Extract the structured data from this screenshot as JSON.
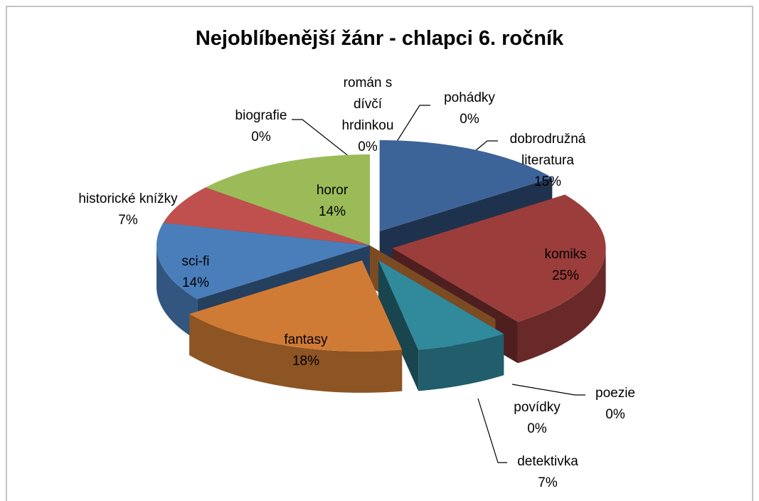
{
  "chart_data": {
    "type": "pie3d",
    "title": "Nejoblíbenější žánr - chlapci 6. ročník",
    "categories": [
      "pohádky",
      "dobrodružná literatura",
      "komiks",
      "poezie",
      "povídky",
      "detektivka",
      "fantasy",
      "sci-fi",
      "historické knížky",
      "horor",
      "biografie",
      "román s dívčí hrdinkou"
    ],
    "values": [
      0,
      15,
      25,
      0,
      0,
      7,
      18,
      14,
      7,
      14,
      0,
      0
    ],
    "value_labels": [
      "0%",
      "15%",
      "25%",
      "0%",
      "0%",
      "7%",
      "18%",
      "14%",
      "7%",
      "14%",
      "0%",
      "0%"
    ],
    "colors": [
      "#8064a2",
      "#3d6499",
      "#9b3d3b",
      "#4bacc6",
      "#f79646",
      "#31899c",
      "#d07b35",
      "#4a7ebb",
      "#c0504d",
      "#9bbb59",
      "#8064a2",
      "#4bacc6"
    ]
  }
}
